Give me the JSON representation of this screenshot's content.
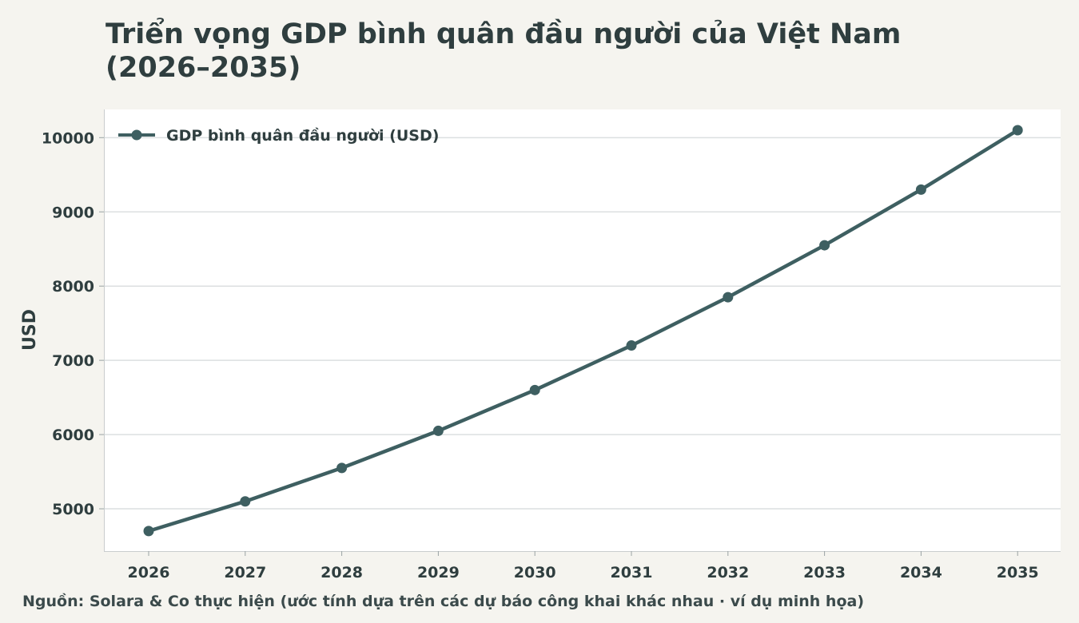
{
  "title_line1": "Triển vọng GDP bình quân đầu người của Việt Nam",
  "title_line2": "(2026–2035)",
  "source_note": "Nguồn: Solara & Co thực hiện (ước tính dựa trên các dự báo công khai khác nhau · ví dụ minh họa)",
  "colors": {
    "line": "#3e5f61",
    "background": "#f5f4ef",
    "plot_background": "#ffffff",
    "grid": "#dcdfe0"
  },
  "chart_data": {
    "type": "line",
    "title": "Triển vọng GDP bình quân đầu người của Việt Nam (2026–2035)",
    "xlabel": "",
    "ylabel": "USD",
    "categories": [
      "2026",
      "2027",
      "2028",
      "2029",
      "2030",
      "2031",
      "2032",
      "2033",
      "2034",
      "2035"
    ],
    "series": [
      {
        "name": "GDP bình quân đầu người (USD)",
        "values": [
          4700,
          5100,
          5550,
          6050,
          6600,
          7200,
          7850,
          8550,
          9300,
          10100
        ]
      }
    ],
    "yticks": [
      5000,
      6000,
      7000,
      8000,
      9000,
      10000
    ],
    "ylim": [
      4430,
      10380
    ],
    "grid": true,
    "legend_position": "top-left"
  }
}
